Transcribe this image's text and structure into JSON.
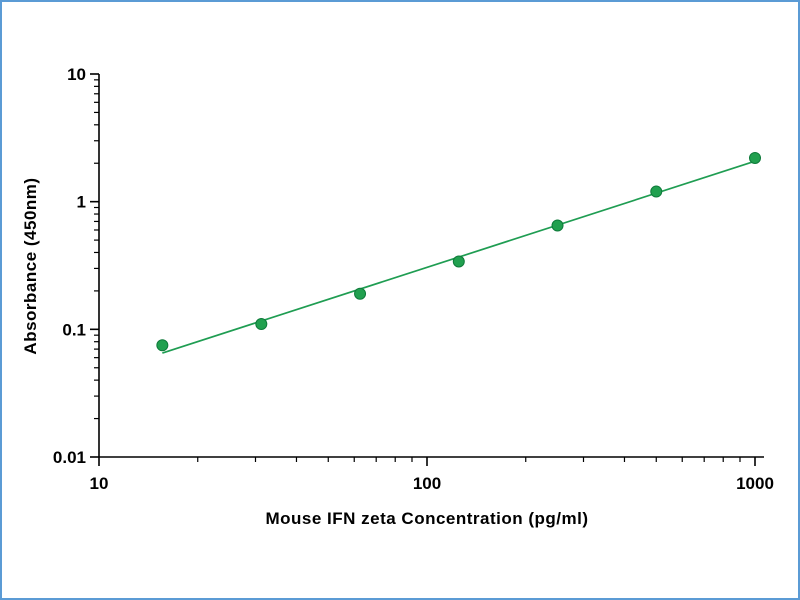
{
  "frame": {
    "border_color": "#5b9bd5",
    "background": "#ffffff"
  },
  "chart_data": {
    "type": "scatter",
    "title": "",
    "xlabel": "Mouse IFN zeta Concentration (pg/ml)",
    "ylabel": "Absorbance (450nm)",
    "x_scale": "log",
    "y_scale": "log",
    "xlim": [
      10,
      1000
    ],
    "ylim": [
      0.01,
      10
    ],
    "grid": false,
    "legend_position": "none",
    "x_ticks": [
      {
        "v": 10,
        "label": "10"
      },
      {
        "v": 100,
        "label": "100"
      },
      {
        "v": 1000,
        "label": "1000"
      }
    ],
    "y_ticks": [
      {
        "v": 0.01,
        "label": "0.01"
      },
      {
        "v": 0.1,
        "label": "0.1"
      },
      {
        "v": 1,
        "label": "1"
      },
      {
        "v": 10,
        "label": "10"
      }
    ],
    "series": [
      {
        "name": "standard-curve",
        "type": "scatter-with-fit-line",
        "x": [
          15.6,
          31.25,
          62.5,
          125,
          250,
          500,
          1000
        ],
        "y": [
          0.075,
          0.11,
          0.19,
          0.34,
          0.65,
          1.2,
          2.2
        ]
      }
    ],
    "point_color": "#21a04f",
    "point_edge_color": "#0e7a3a",
    "line_color": "#1f9d52",
    "axis_color": "#000000"
  }
}
